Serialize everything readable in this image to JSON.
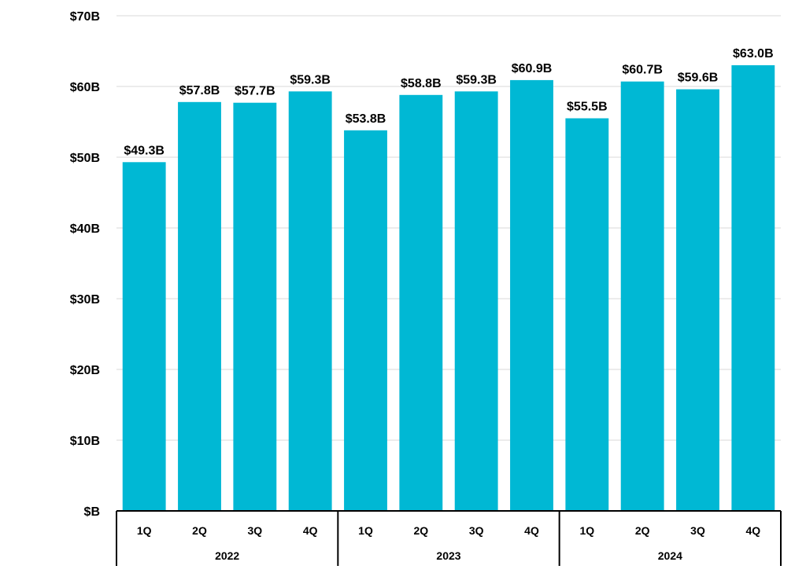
{
  "chart_data": {
    "type": "bar",
    "title": "",
    "xlabel": "",
    "ylabel": "",
    "ylim": [
      0,
      70
    ],
    "y_ticks": [
      "$B",
      "$10B",
      "$20B",
      "$30B",
      "$40B",
      "$50B",
      "$60B",
      "$70B"
    ],
    "y_tick_values": [
      0,
      10,
      20,
      30,
      40,
      50,
      60,
      70
    ],
    "grid": "horizontal",
    "legend": "none",
    "bar_color": "#00B8D4",
    "groups": [
      {
        "label": "2022",
        "categories": [
          "1Q",
          "2Q",
          "3Q",
          "4Q"
        ]
      },
      {
        "label": "2023",
        "categories": [
          "1Q",
          "2Q",
          "3Q",
          "4Q"
        ]
      },
      {
        "label": "2024",
        "categories": [
          "1Q",
          "2Q",
          "3Q",
          "4Q"
        ]
      }
    ],
    "values": [
      49.3,
      57.8,
      57.7,
      59.3,
      53.8,
      58.8,
      59.3,
      60.9,
      55.5,
      60.7,
      59.6,
      63.0
    ],
    "data_labels": [
      "$49.3B",
      "$57.8B",
      "$57.7B",
      "$59.3B",
      "$53.8B",
      "$58.8B",
      "$59.3B",
      "$60.9B",
      "$55.5B",
      "$60.7B",
      "$59.6B",
      "$63.0B"
    ]
  }
}
